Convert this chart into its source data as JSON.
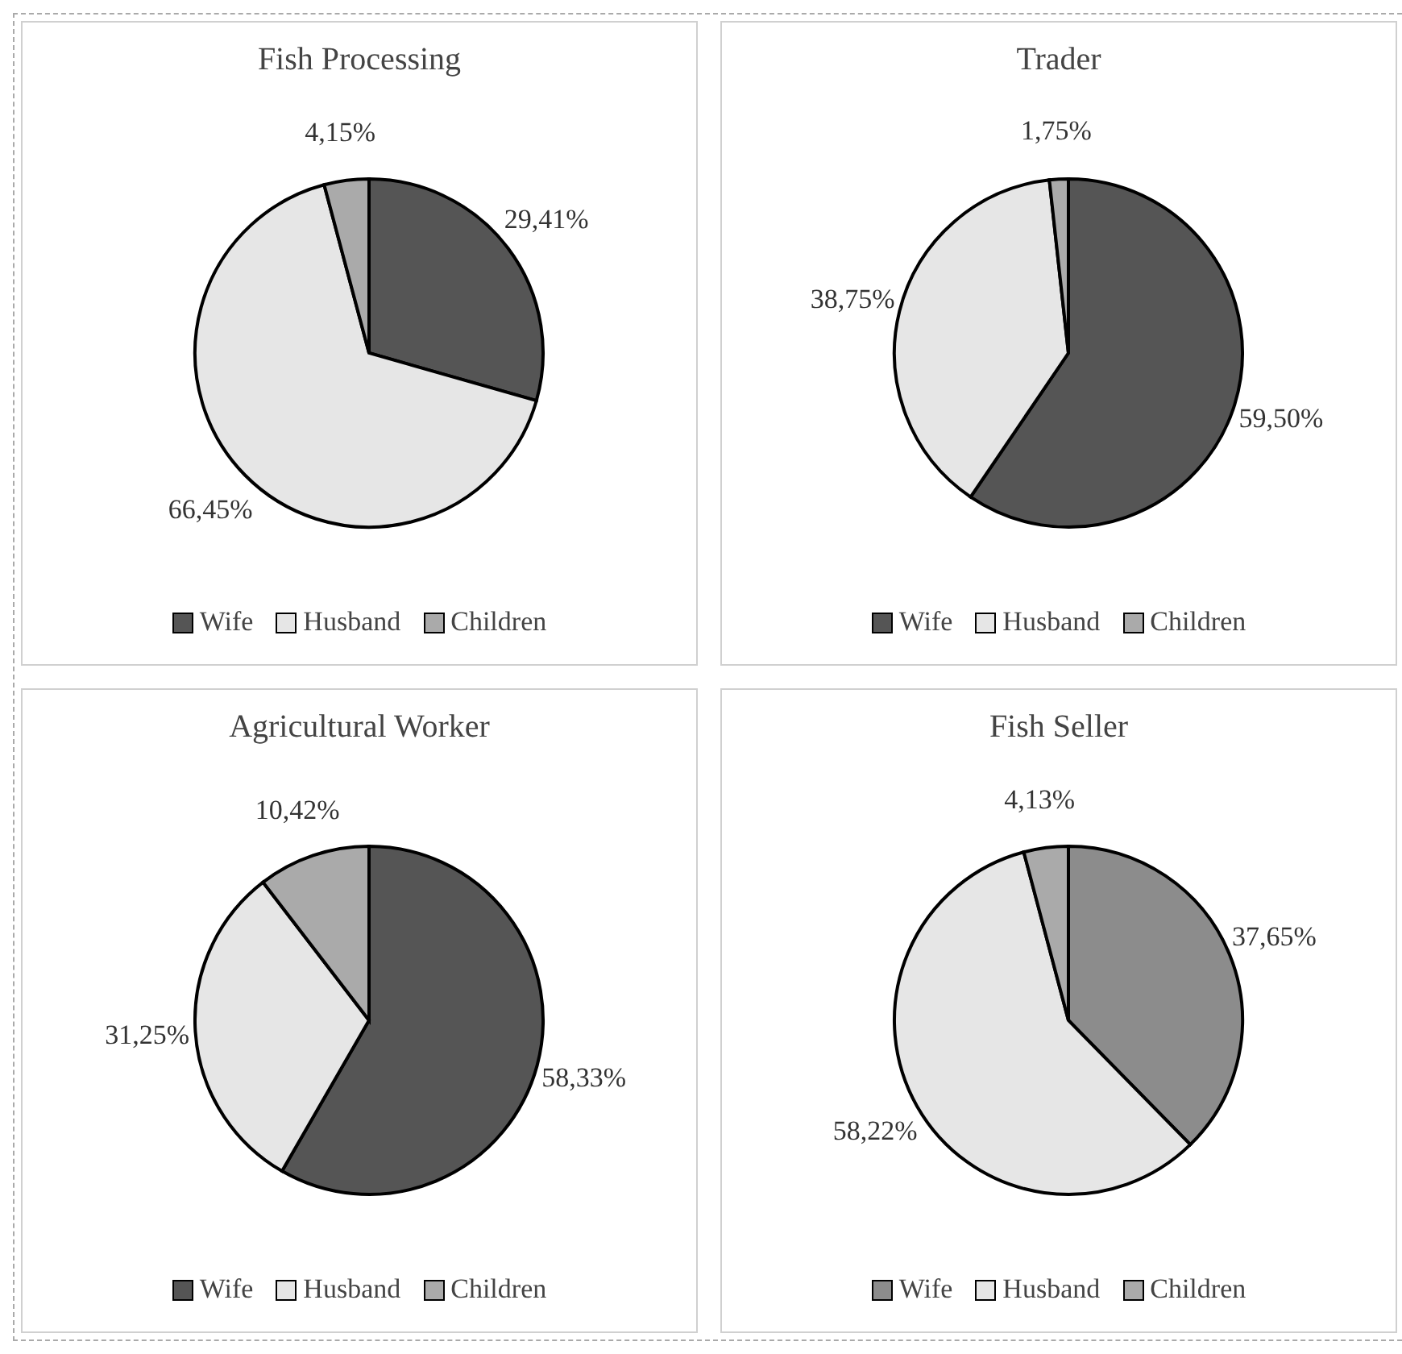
{
  "chart_data": [
    {
      "type": "pie",
      "title": "Fish Processing",
      "categories": [
        "Wife",
        "Husband",
        "Children"
      ],
      "values": [
        29.41,
        66.45,
        4.15
      ],
      "value_labels": [
        "29,41%",
        "66,45%",
        "4,15%"
      ],
      "colors": [
        "#555555",
        "#e6e6e6",
        "#aaaaaa"
      ],
      "legend": "bottom"
    },
    {
      "type": "pie",
      "title": "Trader",
      "categories": [
        "Wife",
        "Husband",
        "Children"
      ],
      "values": [
        59.5,
        38.75,
        1.75
      ],
      "value_labels": [
        "59,50%",
        "38,75%",
        "1,75%"
      ],
      "colors": [
        "#555555",
        "#e6e6e6",
        "#aaaaaa"
      ],
      "legend": "bottom"
    },
    {
      "type": "pie",
      "title": "Agricultural Worker",
      "categories": [
        "Wife",
        "Husband",
        "Children"
      ],
      "values": [
        58.33,
        31.25,
        10.42
      ],
      "value_labels": [
        "58,33%",
        "31,25%",
        "10,42%"
      ],
      "colors": [
        "#555555",
        "#e6e6e6",
        "#aaaaaa"
      ],
      "legend": "bottom"
    },
    {
      "type": "pie",
      "title": "Fish Seller",
      "categories": [
        "Wife",
        "Husband",
        "Children"
      ],
      "values": [
        37.65,
        58.22,
        4.13
      ],
      "value_labels": [
        "37,65%",
        "58,22%",
        "4,13%"
      ],
      "colors": [
        "#8c8c8c",
        "#e6e6e6",
        "#aaaaaa"
      ],
      "legend": "bottom"
    }
  ]
}
